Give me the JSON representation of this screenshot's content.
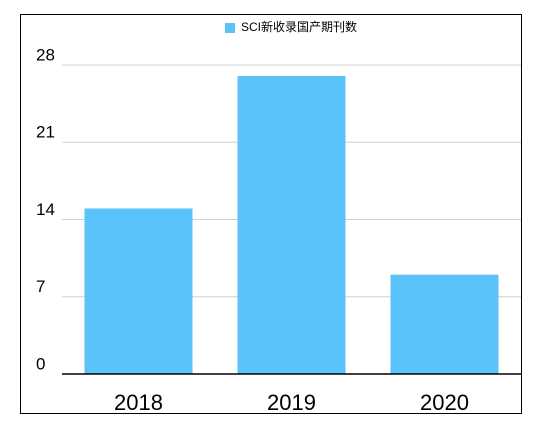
{
  "chart_data": {
    "type": "bar",
    "categories": [
      "2018",
      "2019",
      "2020"
    ],
    "series": [
      {
        "name": "SCI新收录国产期刊数",
        "color": "#5ac3fa",
        "values": [
          15,
          27,
          9
        ]
      }
    ],
    "ylim": [
      0,
      28
    ],
    "yticks": [
      0,
      7,
      14,
      21,
      28
    ],
    "grid": true
  }
}
